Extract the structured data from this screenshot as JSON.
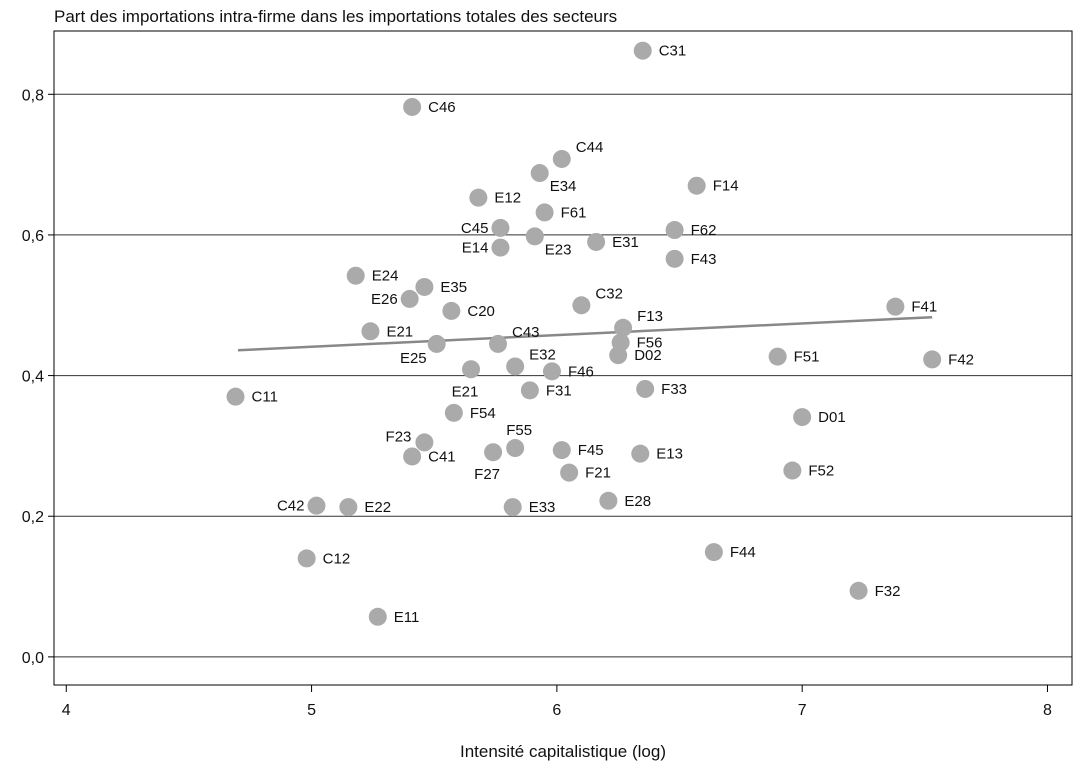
{
  "chart_data": {
    "type": "scatter",
    "title": "Part des importations intra-firme dans les importations totales des secteurs",
    "xlabel": "Intensité capitalistique (log)",
    "ylabel": "",
    "xlim": [
      3.95,
      8.1
    ],
    "ylim": [
      -0.04,
      0.89
    ],
    "xticks": [
      4,
      5,
      6,
      7,
      8
    ],
    "xtick_labels": [
      "4",
      "5",
      "6",
      "7",
      "8"
    ],
    "yticks": [
      0.0,
      0.2,
      0.4,
      0.6,
      0.8
    ],
    "ytick_labels": [
      "0,0",
      "0,2",
      "0,4",
      "0,6",
      "0,8"
    ],
    "grid": "horizontal",
    "legend": "none",
    "marker_color": "#aaaaaa",
    "trend_color": "#888888",
    "trendline": {
      "x": [
        4.7,
        7.53
      ],
      "y": [
        0.436,
        0.483
      ]
    },
    "points": [
      {
        "label": "C31",
        "x": 6.35,
        "y": 0.862,
        "pos": "right"
      },
      {
        "label": "C46",
        "x": 5.41,
        "y": 0.782,
        "pos": "right"
      },
      {
        "label": "C44",
        "x": 6.02,
        "y": 0.708,
        "pos": "right-up"
      },
      {
        "label": "E34",
        "x": 5.93,
        "y": 0.688,
        "pos": "right-down"
      },
      {
        "label": "F14",
        "x": 6.57,
        "y": 0.67,
        "pos": "right"
      },
      {
        "label": "E12",
        "x": 5.68,
        "y": 0.653,
        "pos": "right"
      },
      {
        "label": "F61",
        "x": 5.95,
        "y": 0.632,
        "pos": "right"
      },
      {
        "label": "C45",
        "x": 5.77,
        "y": 0.61,
        "pos": "left"
      },
      {
        "label": "F62",
        "x": 6.48,
        "y": 0.607,
        "pos": "right"
      },
      {
        "label": "E23",
        "x": 5.91,
        "y": 0.598,
        "pos": "right-down"
      },
      {
        "label": "E31",
        "x": 6.16,
        "y": 0.59,
        "pos": "right"
      },
      {
        "label": "E14",
        "x": 5.77,
        "y": 0.582,
        "pos": "left"
      },
      {
        "label": "F43",
        "x": 6.48,
        "y": 0.566,
        "pos": "right"
      },
      {
        "label": "E24",
        "x": 5.18,
        "y": 0.542,
        "pos": "right"
      },
      {
        "label": "E35",
        "x": 5.46,
        "y": 0.526,
        "pos": "right"
      },
      {
        "label": "E26",
        "x": 5.4,
        "y": 0.509,
        "pos": "left"
      },
      {
        "label": "C32",
        "x": 6.1,
        "y": 0.5,
        "pos": "right-up"
      },
      {
        "label": "F41",
        "x": 7.38,
        "y": 0.498,
        "pos": "right"
      },
      {
        "label": "C20",
        "x": 5.57,
        "y": 0.492,
        "pos": "right"
      },
      {
        "label": "F13",
        "x": 6.27,
        "y": 0.468,
        "pos": "right-up"
      },
      {
        "label": "E21",
        "x": 5.24,
        "y": 0.463,
        "pos": "right"
      },
      {
        "label": "C43",
        "x": 5.76,
        "y": 0.445,
        "pos": "right-up"
      },
      {
        "label": "E25",
        "x": 5.51,
        "y": 0.445,
        "pos": "left-down"
      },
      {
        "label": "F56",
        "x": 6.26,
        "y": 0.447,
        "pos": "right"
      },
      {
        "label": "D02",
        "x": 6.25,
        "y": 0.429,
        "pos": "right"
      },
      {
        "label": "F51",
        "x": 6.9,
        "y": 0.427,
        "pos": "right"
      },
      {
        "label": "F42",
        "x": 7.53,
        "y": 0.423,
        "pos": "right"
      },
      {
        "label": "E32",
        "x": 5.83,
        "y": 0.413,
        "pos": "right-up"
      },
      {
        "label": "E21",
        "x": 5.65,
        "y": 0.409,
        "pos": "down"
      },
      {
        "label": "F46",
        "x": 5.98,
        "y": 0.406,
        "pos": "right"
      },
      {
        "label": "F33",
        "x": 6.36,
        "y": 0.381,
        "pos": "right"
      },
      {
        "label": "F31",
        "x": 5.89,
        "y": 0.379,
        "pos": "right"
      },
      {
        "label": "C11",
        "x": 4.69,
        "y": 0.37,
        "pos": "right"
      },
      {
        "label": "F54",
        "x": 5.58,
        "y": 0.347,
        "pos": "right"
      },
      {
        "label": "D01",
        "x": 7.0,
        "y": 0.341,
        "pos": "right"
      },
      {
        "label": "F23",
        "x": 5.46,
        "y": 0.305,
        "pos": "left-up"
      },
      {
        "label": "F55",
        "x": 5.83,
        "y": 0.297,
        "pos": "up"
      },
      {
        "label": "F45",
        "x": 6.02,
        "y": 0.294,
        "pos": "right"
      },
      {
        "label": "F27",
        "x": 5.74,
        "y": 0.291,
        "pos": "down"
      },
      {
        "label": "E13",
        "x": 6.34,
        "y": 0.289,
        "pos": "right"
      },
      {
        "label": "C41",
        "x": 5.41,
        "y": 0.285,
        "pos": "right"
      },
      {
        "label": "F52",
        "x": 6.96,
        "y": 0.265,
        "pos": "right"
      },
      {
        "label": "F21",
        "x": 6.05,
        "y": 0.262,
        "pos": "right"
      },
      {
        "label": "E28",
        "x": 6.21,
        "y": 0.222,
        "pos": "right"
      },
      {
        "label": "C42",
        "x": 5.02,
        "y": 0.215,
        "pos": "left"
      },
      {
        "label": "E22",
        "x": 5.15,
        "y": 0.213,
        "pos": "right"
      },
      {
        "label": "E33",
        "x": 5.82,
        "y": 0.213,
        "pos": "right"
      },
      {
        "label": "F44",
        "x": 6.64,
        "y": 0.149,
        "pos": "right"
      },
      {
        "label": "C12",
        "x": 4.98,
        "y": 0.14,
        "pos": "right"
      },
      {
        "label": "F32",
        "x": 7.23,
        "y": 0.094,
        "pos": "right"
      },
      {
        "label": "E11",
        "x": 5.27,
        "y": 0.057,
        "pos": "right"
      }
    ]
  }
}
